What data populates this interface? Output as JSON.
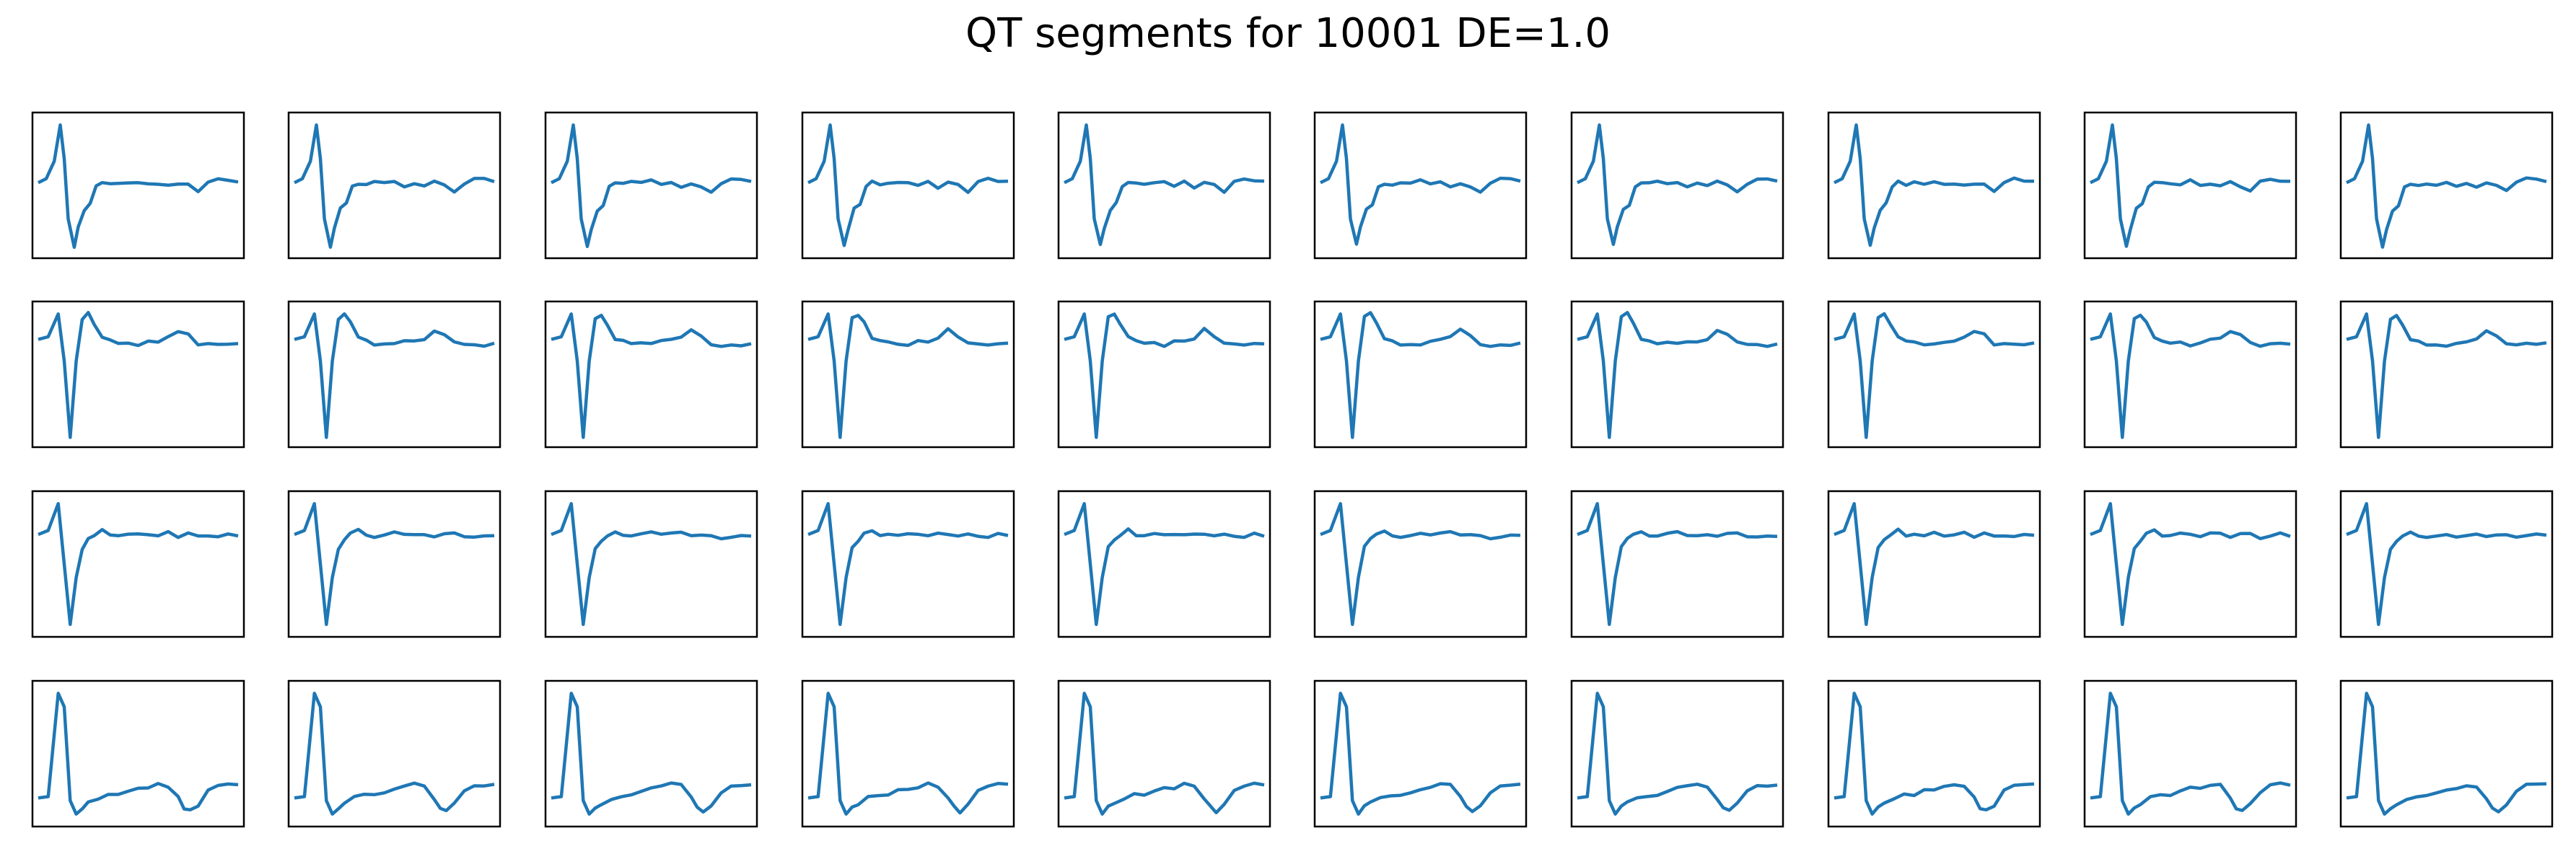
{
  "title": "QT segments for 10001 DE=1.0",
  "chart_data": {
    "type": "line",
    "title": "QT segments for 10001 DE=1.0",
    "rows": 4,
    "cols": 10,
    "axes_ticks": "hidden",
    "line_color": "#1f77b4",
    "y_range": [
      0,
      1
    ],
    "x_range": [
      0,
      1
    ],
    "row_waveforms": [
      {
        "row": 1,
        "x": [
          0.0,
          0.04,
          0.08,
          0.11,
          0.13,
          0.15,
          0.18,
          0.2,
          0.23,
          0.26,
          0.29,
          0.32,
          0.36,
          0.4,
          0.45,
          0.5,
          0.55,
          0.6,
          0.65,
          0.7,
          0.75,
          0.8,
          0.85,
          0.9,
          0.95,
          1.0
        ],
        "y": [
          0.52,
          0.55,
          0.68,
          0.95,
          0.7,
          0.25,
          0.05,
          0.18,
          0.32,
          0.36,
          0.5,
          0.52,
          0.51,
          0.52,
          0.51,
          0.53,
          0.5,
          0.52,
          0.49,
          0.52,
          0.5,
          0.46,
          0.52,
          0.55,
          0.54,
          0.52
        ]
      },
      {
        "row": 2,
        "x": [
          0.0,
          0.05,
          0.1,
          0.13,
          0.16,
          0.19,
          0.22,
          0.25,
          0.28,
          0.32,
          0.36,
          0.4,
          0.45,
          0.5,
          0.55,
          0.6,
          0.65,
          0.7,
          0.75,
          0.8,
          0.85,
          0.9,
          0.95,
          1.0
        ],
        "y": [
          0.76,
          0.78,
          0.95,
          0.6,
          0.03,
          0.6,
          0.92,
          0.95,
          0.88,
          0.77,
          0.76,
          0.73,
          0.73,
          0.72,
          0.74,
          0.75,
          0.77,
          0.83,
          0.79,
          0.73,
          0.72,
          0.73,
          0.72,
          0.73
        ]
      },
      {
        "row": 3,
        "x": [
          0.0,
          0.05,
          0.1,
          0.13,
          0.16,
          0.19,
          0.22,
          0.25,
          0.28,
          0.32,
          0.36,
          0.4,
          0.45,
          0.5,
          0.55,
          0.6,
          0.65,
          0.7,
          0.75,
          0.8,
          0.85,
          0.9,
          0.95,
          1.0
        ],
        "y": [
          0.72,
          0.75,
          0.95,
          0.5,
          0.05,
          0.4,
          0.62,
          0.68,
          0.72,
          0.75,
          0.72,
          0.71,
          0.72,
          0.73,
          0.71,
          0.72,
          0.73,
          0.71,
          0.72,
          0.72,
          0.7,
          0.71,
          0.72,
          0.71
        ]
      },
      {
        "row": 4,
        "x": [
          0.0,
          0.05,
          0.1,
          0.13,
          0.16,
          0.19,
          0.22,
          0.25,
          0.3,
          0.35,
          0.4,
          0.45,
          0.5,
          0.55,
          0.6,
          0.65,
          0.7,
          0.73,
          0.76,
          0.8,
          0.85,
          0.9,
          0.95,
          1.0
        ],
        "y": [
          0.17,
          0.18,
          0.95,
          0.85,
          0.15,
          0.05,
          0.1,
          0.13,
          0.17,
          0.19,
          0.2,
          0.22,
          0.24,
          0.25,
          0.27,
          0.26,
          0.17,
          0.1,
          0.07,
          0.12,
          0.22,
          0.27,
          0.27,
          0.27
        ]
      }
    ]
  }
}
